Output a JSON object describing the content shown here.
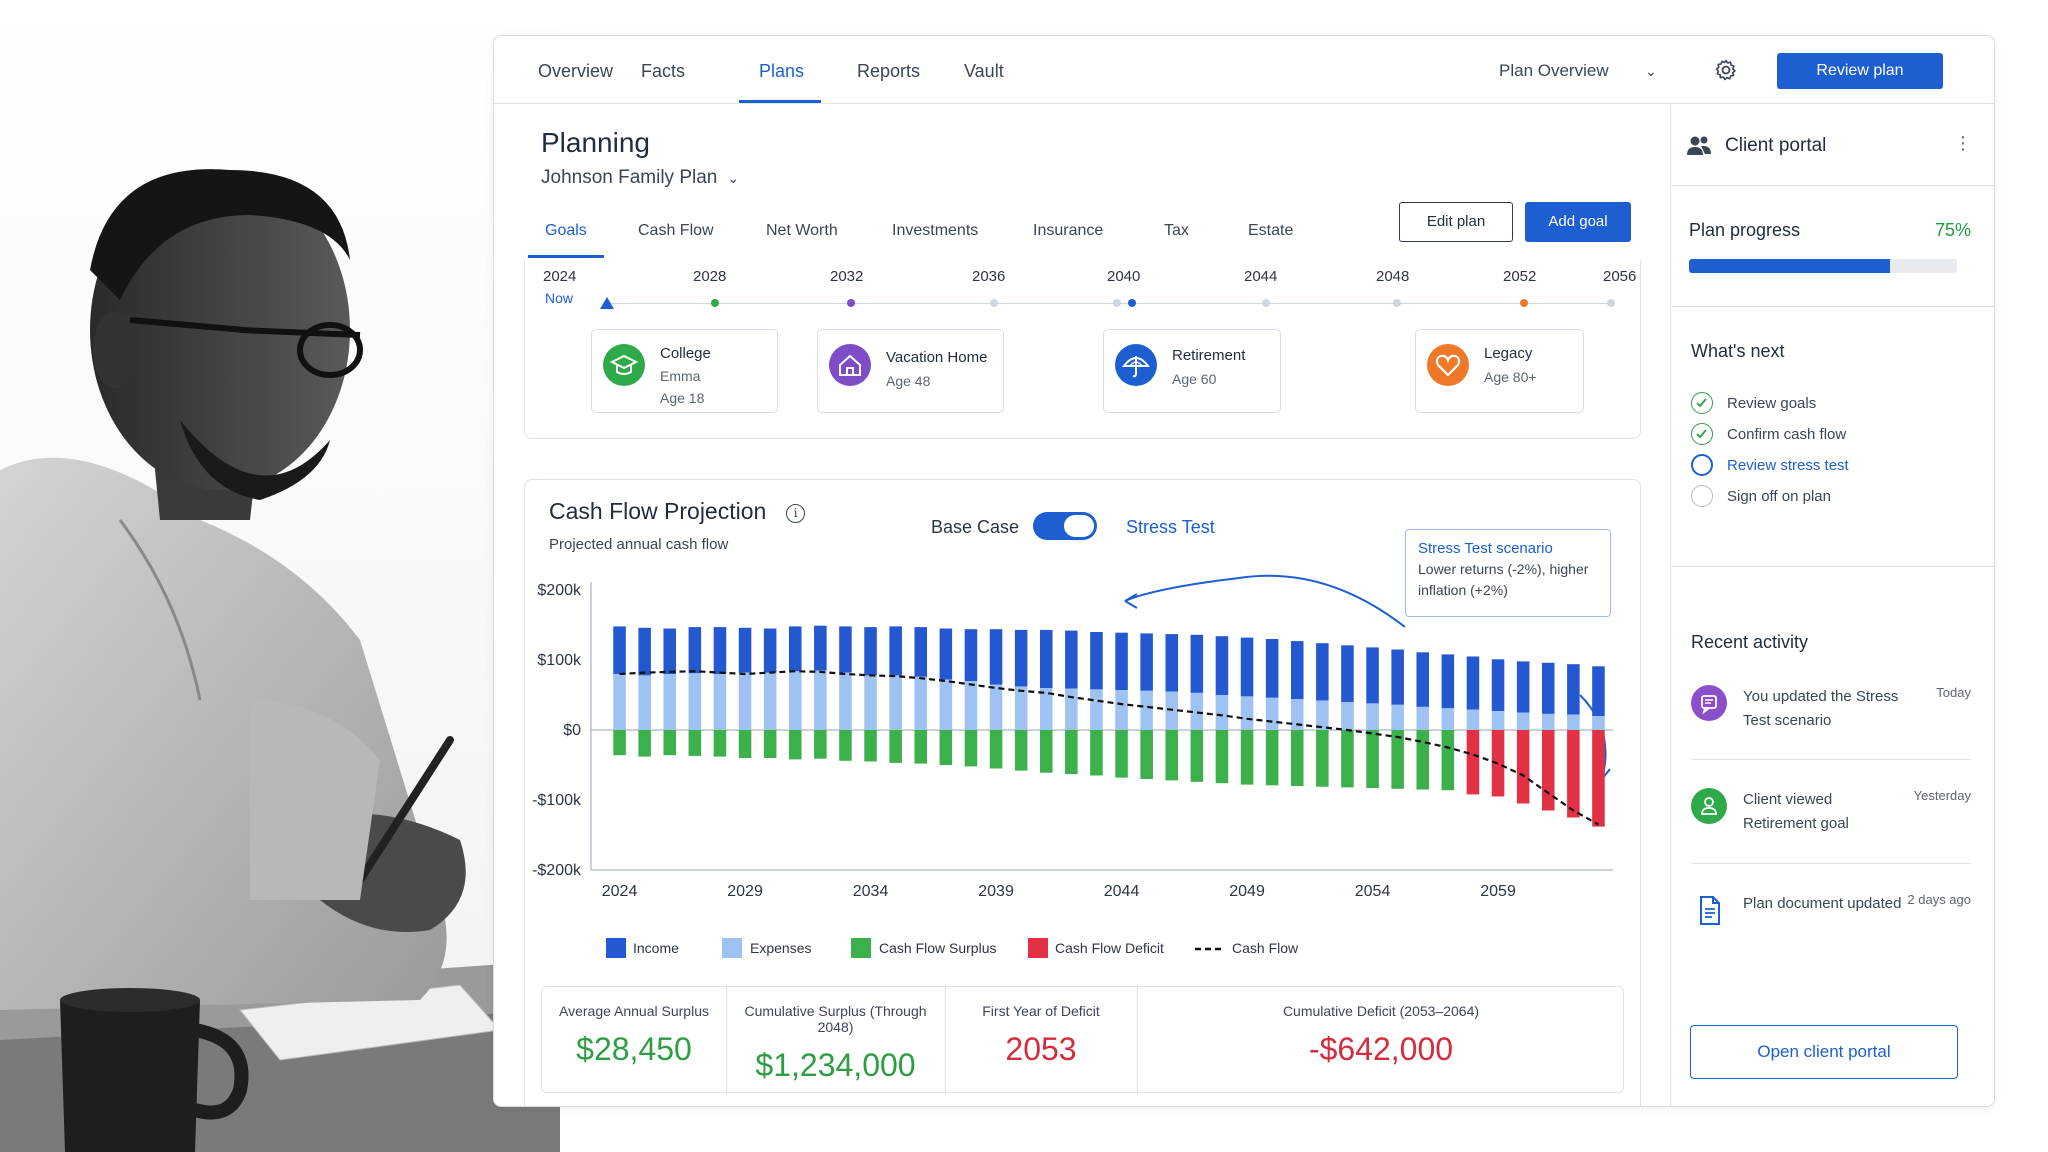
{
  "topnav": {
    "tabs": [
      "Overview",
      "Facts",
      "Plans",
      "Reports",
      "Vault"
    ],
    "active_tab": "Plans",
    "plan_overview_label": "Plan Overview",
    "review_button": "Review plan"
  },
  "main": {
    "title": "Planning",
    "plan_name": "Johnson Family Plan",
    "subtabs": [
      "Goals",
      "Cash Flow",
      "Net Worth",
      "Investments",
      "Insurance",
      "Tax",
      "Estate"
    ],
    "active_subtab": "Goals",
    "edit_button": "Edit plan",
    "add_button": "Add goal"
  },
  "timeline": {
    "years": [
      "2024",
      "2028",
      "2032",
      "2036",
      "2040",
      "2044",
      "2048",
      "2052",
      "2056"
    ],
    "now_label": "Now",
    "goals": [
      {
        "name": "College",
        "sub1": "Emma",
        "sub2": "Age 18",
        "icon": "graduation-cap-icon",
        "color": "#2faa4a"
      },
      {
        "name": "Vacation Home",
        "sub1": "Age 48",
        "icon": "home-icon",
        "color": "#7e4cc6"
      },
      {
        "name": "Retirement",
        "sub1": "Age 60",
        "icon": "umbrella-icon",
        "color": "#1d5fd1"
      },
      {
        "name": "Legacy",
        "sub1": "Age 80+",
        "icon": "heart-icon",
        "color": "#f0782a"
      }
    ]
  },
  "cashflow": {
    "title": "Cash Flow Projection",
    "subtitle": "Projected annual cash flow",
    "toggle_left": "Base Case",
    "toggle_right": "Stress Test",
    "toggle_on": true,
    "callout_title": "Stress Test scenario",
    "callout_body": "Lower returns (-2%), higher inflation (+2%)"
  },
  "chart_data": {
    "type": "bar",
    "x": [
      2024,
      2025,
      2026,
      2027,
      2028,
      2029,
      2030,
      2031,
      2032,
      2033,
      2034,
      2035,
      2036,
      2037,
      2038,
      2039,
      2040,
      2041,
      2042,
      2043,
      2044,
      2045,
      2046,
      2047,
      2048,
      2049,
      2050,
      2051,
      2052,
      2053,
      2054,
      2055,
      2056,
      2057,
      2058,
      2059,
      2060,
      2061,
      2062,
      2063
    ],
    "xticks": [
      "2024",
      "2029",
      "2034",
      "2039",
      "2044",
      "2049",
      "2054",
      "2059"
    ],
    "yticks": [
      "$200k",
      "$100k",
      "$0",
      "-$100k",
      "-$200k"
    ],
    "ylim": [
      -200000,
      200000
    ],
    "series": [
      {
        "name": "Income",
        "color": "#2458d0",
        "values": [
          148000,
          146000,
          145000,
          147000,
          147000,
          146000,
          145000,
          148000,
          149000,
          148000,
          147000,
          148000,
          147000,
          145000,
          144000,
          144000,
          143000,
          143000,
          142000,
          140000,
          139000,
          138000,
          137000,
          136000,
          134000,
          132000,
          130000,
          127000,
          124000,
          121000,
          118000,
          115000,
          111000,
          108000,
          105000,
          101000,
          98000,
          96000,
          94000,
          91000
        ]
      },
      {
        "name": "Expenses",
        "color": "#9ec2f2",
        "values": [
          80000,
          78000,
          80000,
          81000,
          80000,
          82000,
          82000,
          84000,
          85000,
          82000,
          78000,
          78000,
          76000,
          72000,
          70000,
          65000,
          62000,
          60000,
          59000,
          58000,
          57000,
          56000,
          55000,
          53000,
          50000,
          48000,
          46000,
          44000,
          42000,
          40000,
          38000,
          36000,
          33000,
          31000,
          29000,
          27000,
          25000,
          23000,
          22000,
          20000
        ]
      },
      {
        "name": "Cash Flow Surplus",
        "color": "#3cb04a",
        "values": [
          -36000,
          -38000,
          -36000,
          -37000,
          -38000,
          -40000,
          -40000,
          -42000,
          -41000,
          -44000,
          -45000,
          -47000,
          -48000,
          -50000,
          -52000,
          -55000,
          -58000,
          -61000,
          -63000,
          -65000,
          -68000,
          -70000,
          -72000,
          -74000,
          -76000,
          -78000,
          -79000,
          -80000,
          -81000,
          -82000,
          -83000,
          -84000,
          -85000,
          -86000,
          -87000,
          -88000,
          -89000,
          -90000,
          -91000,
          -92000
        ]
      },
      {
        "name": "Cash Flow Deficit",
        "color": "#e23144",
        "values": [
          0,
          0,
          0,
          0,
          0,
          0,
          0,
          0,
          0,
          0,
          0,
          0,
          0,
          0,
          0,
          0,
          0,
          0,
          0,
          0,
          0,
          0,
          0,
          0,
          0,
          0,
          0,
          0,
          0,
          0,
          0,
          0,
          0,
          0,
          -92000,
          -95000,
          -105000,
          -115000,
          -125000,
          -138000
        ]
      },
      {
        "name": "Cash Flow",
        "color": "#111111",
        "values": [
          80000,
          82000,
          83000,
          84000,
          82000,
          80000,
          82000,
          84000,
          83000,
          80000,
          78000,
          77000,
          74000,
          70000,
          65000,
          60000,
          56000,
          53000,
          47000,
          42000,
          37000,
          33000,
          29000,
          25000,
          21000,
          16000,
          12000,
          8000,
          4000,
          0,
          -5000,
          -10000,
          -17000,
          -25000,
          -35000,
          -48000,
          -65000,
          -90000,
          -115000,
          -135000
        ]
      }
    ]
  },
  "stats": [
    {
      "label": "Average Annual Surplus",
      "value": "$28,450",
      "color": "#2e9e44"
    },
    {
      "label": "Cumulative Surplus (Through 2048)",
      "value": "$1,234,000",
      "color": "#2e9e44"
    },
    {
      "label": "First Year of Deficit",
      "value": "2053",
      "color": "#d52b3c"
    },
    {
      "label": "Cumulative Deficit (2053–2064)",
      "value": "-$642,000",
      "color": "#d52b3c"
    }
  ],
  "right_panel": {
    "title": "Client portal",
    "progress_label": "Plan progress",
    "progress_pct": "75%",
    "progress_value": 0.75,
    "next_title": "What's next",
    "next_items": [
      {
        "label": "Review goals",
        "state": "done"
      },
      {
        "label": "Confirm cash flow",
        "state": "done"
      },
      {
        "label": "Review stress test",
        "state": "current"
      },
      {
        "label": "Sign off on plan",
        "state": "todo"
      }
    ],
    "recent_title": "Recent activity",
    "activity": [
      {
        "text": "You updated the Stress Test scenario",
        "time": "Today",
        "icon": "message-icon",
        "color": "#8a4fc9"
      },
      {
        "text": "Client viewed Retirement goal",
        "time": "Yesterday",
        "icon": "user-icon",
        "color": "#2faa4a"
      },
      {
        "text": "Plan document updated",
        "time": "2 days ago",
        "icon": "document-icon",
        "color": "#1d5fd1"
      }
    ],
    "open_button": "Open client portal"
  }
}
